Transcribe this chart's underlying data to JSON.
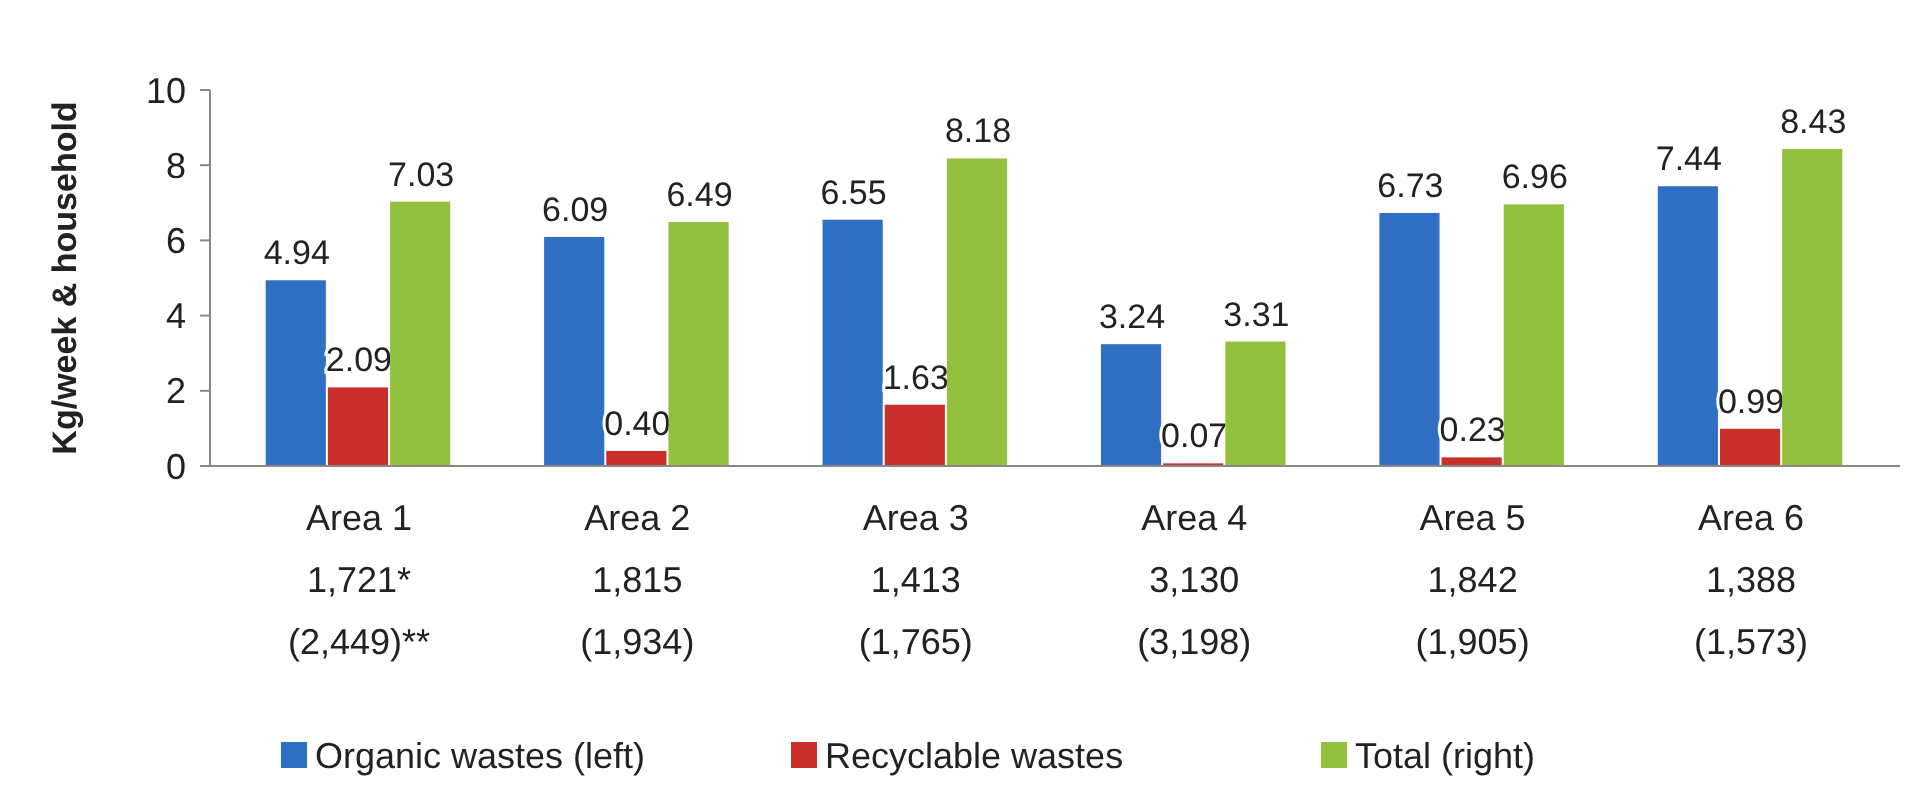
{
  "chart_data": {
    "type": "bar",
    "ylabel": "Kg/week & household",
    "categories": [
      "Area 1\n1,721*\n(2,449)**",
      "Area 2\n1,815\n(1,934)",
      "Area 3\n1,413\n(1,765)",
      "Area 4\n3,130\n(3,198)",
      "Area 5\n1,842\n(1,905)",
      "Area 6\n1,388\n(1,573)"
    ],
    "series": [
      {
        "name": "Organic wastes (left)",
        "color": "#2f6fc4",
        "values": [
          4.94,
          6.09,
          6.55,
          3.24,
          6.73,
          7.44
        ],
        "value_labels": [
          "4.94",
          "6.09",
          "6.55",
          "3.24",
          "6.73",
          "7.44"
        ]
      },
      {
        "name": "Recyclable wastes",
        "color": "#c9302c",
        "values": [
          2.09,
          0.4,
          1.63,
          0.07,
          0.23,
          0.99
        ],
        "value_labels": [
          "2.09",
          "0.40",
          "1.63",
          "0.07",
          "0.23",
          "0.99"
        ]
      },
      {
        "name": "Total (right)",
        "color": "#92c13e",
        "values": [
          7.03,
          6.49,
          8.18,
          3.31,
          6.96,
          8.43
        ],
        "value_labels": [
          "7.03",
          "6.49",
          "8.18",
          "3.31",
          "6.96",
          "8.43"
        ]
      }
    ],
    "ylim": [
      0,
      10
    ],
    "yticks": [
      0,
      2,
      4,
      6,
      8,
      10
    ],
    "grid": false,
    "legend": "bottom"
  }
}
